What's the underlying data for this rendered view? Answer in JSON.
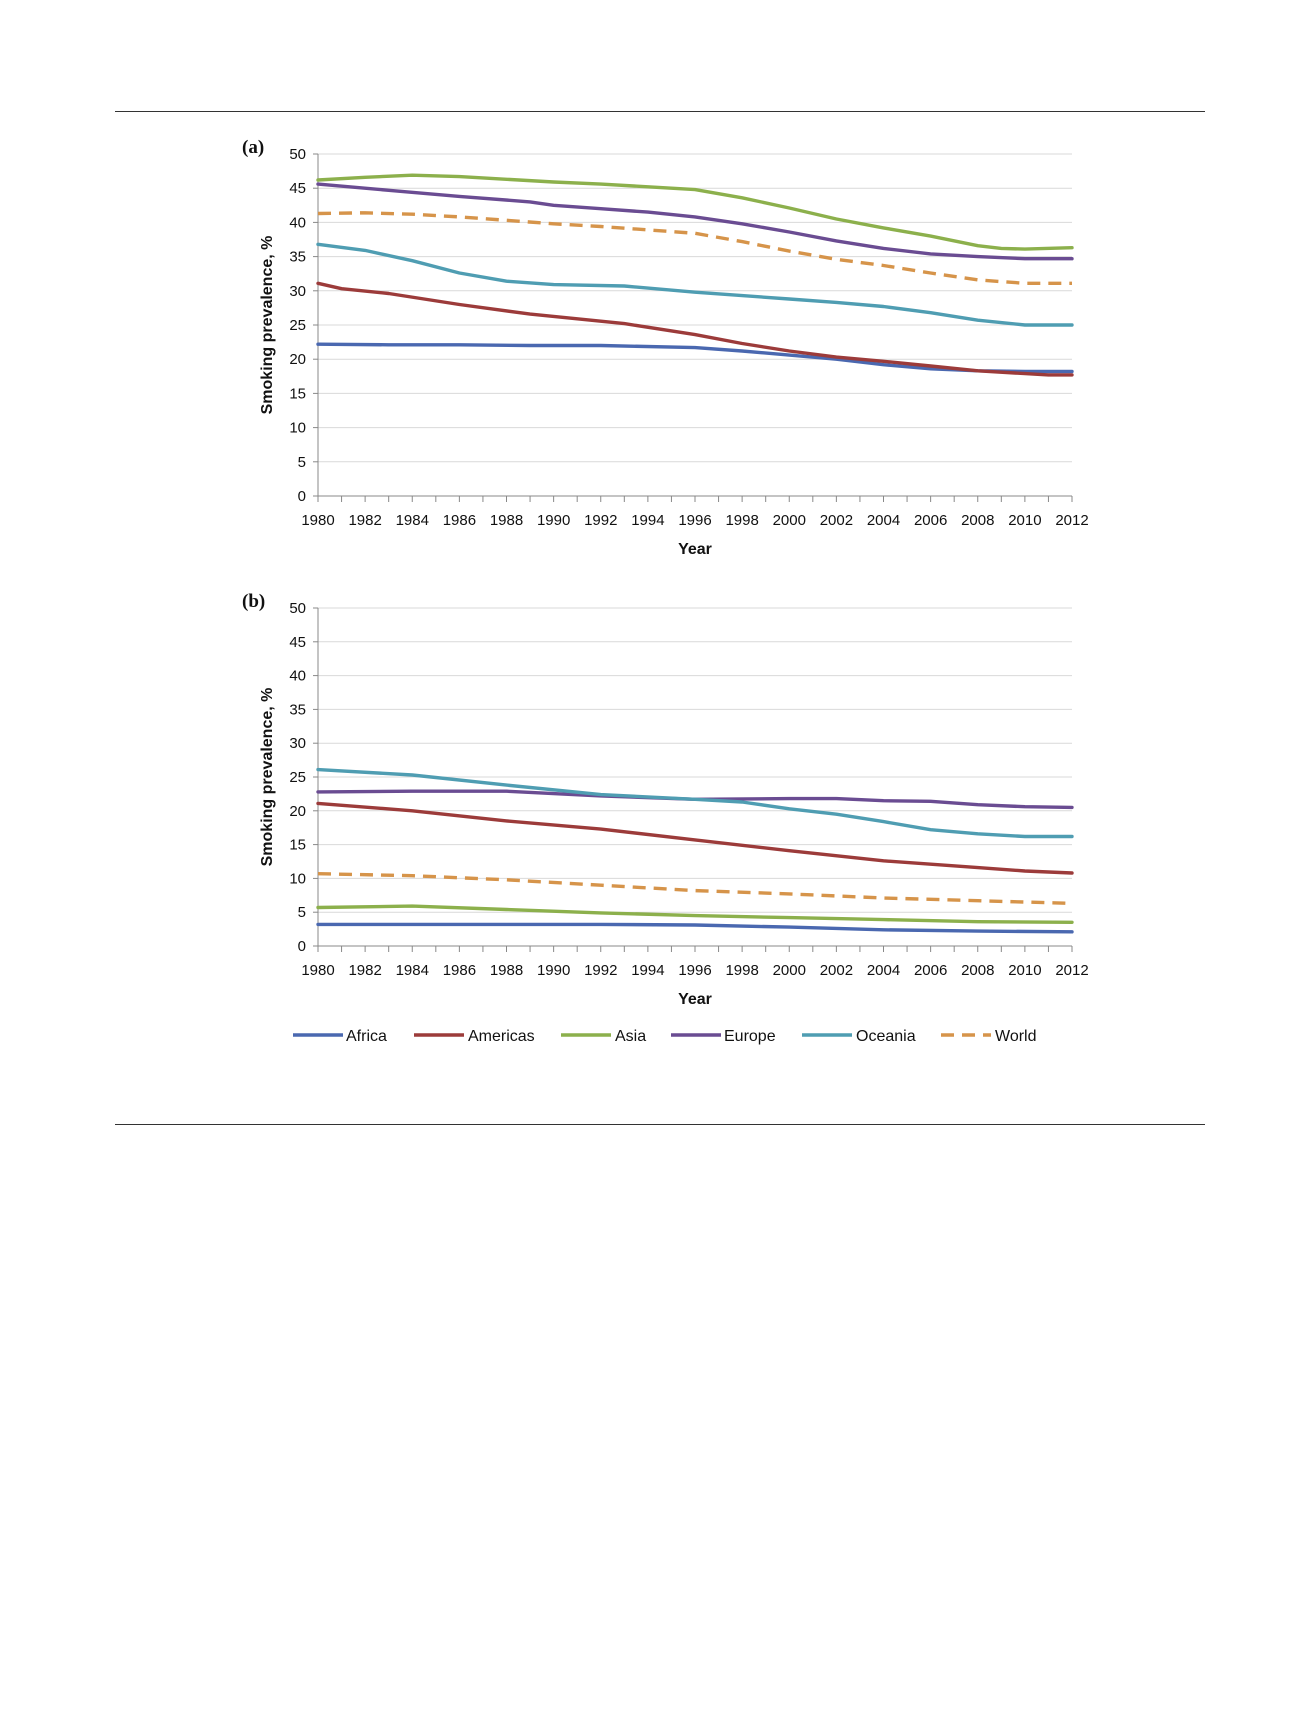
{
  "chart_data": [
    {
      "type": "line",
      "panel_label": "(a)",
      "xlabel": "Year",
      "ylabel": "Smoking prevalence, %",
      "ylim": [
        0,
        50
      ],
      "yticks": [
        0,
        5,
        10,
        15,
        20,
        25,
        30,
        35,
        40,
        45,
        50
      ],
      "xlim": [
        1980,
        2012
      ],
      "xticks": [
        1980,
        1982,
        1984,
        1986,
        1988,
        1990,
        1992,
        1994,
        1996,
        1998,
        2000,
        2002,
        2004,
        2006,
        2008,
        2010,
        2012
      ],
      "grid": true,
      "series": [
        {
          "name": "Africa",
          "x": [
            1980,
            1983,
            1986,
            1989,
            1992,
            1996,
            1998,
            2000,
            2002,
            2004,
            2006,
            2008,
            2010,
            2012
          ],
          "values": [
            22.2,
            22.1,
            22.1,
            22.0,
            22.0,
            21.7,
            21.2,
            20.6,
            20.0,
            19.2,
            18.6,
            18.3,
            18.2,
            18.2
          ]
        },
        {
          "name": "Americas",
          "x": [
            1980,
            1981,
            1983,
            1986,
            1989,
            1993,
            1996,
            1998,
            2000,
            2002,
            2004,
            2006,
            2008,
            2010,
            2011,
            2012
          ],
          "values": [
            31.1,
            30.3,
            29.6,
            28.0,
            26.6,
            25.2,
            23.6,
            22.3,
            21.2,
            20.3,
            19.7,
            19.0,
            18.3,
            17.9,
            17.7,
            17.7
          ]
        },
        {
          "name": "Asia",
          "x": [
            1980,
            1982,
            1984,
            1986,
            1988,
            1990,
            1992,
            1994,
            1996,
            1998,
            2000,
            2002,
            2004,
            2006,
            2008,
            2009,
            2010,
            2012
          ],
          "values": [
            46.2,
            46.6,
            46.9,
            46.7,
            46.3,
            45.9,
            45.6,
            45.2,
            44.8,
            43.6,
            42.1,
            40.5,
            39.2,
            38.0,
            36.6,
            36.2,
            36.1,
            36.3
          ]
        },
        {
          "name": "Europe",
          "x": [
            1980,
            1983,
            1986,
            1989,
            1990,
            1992,
            1994,
            1996,
            1998,
            2000,
            2002,
            2004,
            2006,
            2008,
            2010,
            2012
          ],
          "values": [
            45.6,
            44.7,
            43.8,
            43.0,
            42.5,
            42.0,
            41.5,
            40.8,
            39.8,
            38.6,
            37.3,
            36.2,
            35.4,
            35.0,
            34.7,
            34.7
          ]
        },
        {
          "name": "Oceania",
          "x": [
            1980,
            1982,
            1984,
            1986,
            1988,
            1990,
            1993,
            1996,
            1998,
            2000,
            2002,
            2004,
            2006,
            2008,
            2010,
            2012
          ],
          "values": [
            36.8,
            35.9,
            34.4,
            32.6,
            31.4,
            30.9,
            30.7,
            29.8,
            29.3,
            28.8,
            28.3,
            27.7,
            26.8,
            25.7,
            25.0,
            25.0
          ]
        },
        {
          "name": "World",
          "x": [
            1980,
            1982,
            1984,
            1986,
            1988,
            1990,
            1992,
            1994,
            1996,
            1998,
            2000,
            2002,
            2004,
            2006,
            2008,
            2010,
            2012
          ],
          "values": [
            41.3,
            41.4,
            41.2,
            40.8,
            40.3,
            39.8,
            39.4,
            38.9,
            38.4,
            37.2,
            35.8,
            34.6,
            33.7,
            32.6,
            31.6,
            31.1,
            31.1
          ]
        }
      ]
    },
    {
      "type": "line",
      "panel_label": "(b)",
      "xlabel": "Year",
      "ylabel": "Smoking prevalence, %",
      "ylim": [
        0,
        50
      ],
      "yticks": [
        0,
        5,
        10,
        15,
        20,
        25,
        30,
        35,
        40,
        45,
        50
      ],
      "xlim": [
        1980,
        2012
      ],
      "xticks": [
        1980,
        1982,
        1984,
        1986,
        1988,
        1990,
        1992,
        1994,
        1996,
        1998,
        2000,
        2002,
        2004,
        2006,
        2008,
        2010,
        2012
      ],
      "grid": true,
      "series": [
        {
          "name": "Africa",
          "x": [
            1980,
            1985,
            1990,
            1992,
            1996,
            2000,
            2004,
            2008,
            2012
          ],
          "values": [
            3.2,
            3.2,
            3.2,
            3.2,
            3.1,
            2.8,
            2.4,
            2.2,
            2.1
          ]
        },
        {
          "name": "Americas",
          "x": [
            1980,
            1984,
            1988,
            1992,
            1996,
            2000,
            2004,
            2008,
            2010,
            2012
          ],
          "values": [
            21.1,
            20.0,
            18.5,
            17.3,
            15.7,
            14.1,
            12.6,
            11.6,
            11.1,
            10.8
          ]
        },
        {
          "name": "Asia",
          "x": [
            1980,
            1984,
            1988,
            1992,
            1996,
            2000,
            2004,
            2008,
            2012
          ],
          "values": [
            5.7,
            5.9,
            5.4,
            4.9,
            4.5,
            4.2,
            3.9,
            3.6,
            3.5
          ]
        },
        {
          "name": "Europe",
          "x": [
            1980,
            1984,
            1988,
            1992,
            1996,
            2000,
            2002,
            2004,
            2006,
            2008,
            2010,
            2012
          ],
          "values": [
            22.8,
            22.9,
            22.9,
            22.2,
            21.7,
            21.8,
            21.8,
            21.5,
            21.4,
            20.9,
            20.6,
            20.5
          ]
        },
        {
          "name": "Oceania",
          "x": [
            1980,
            1984,
            1988,
            1992,
            1996,
            1998,
            2000,
            2002,
            2004,
            2006,
            2008,
            2010,
            2012
          ],
          "values": [
            26.1,
            25.3,
            23.8,
            22.4,
            21.7,
            21.3,
            20.3,
            19.5,
            18.4,
            17.2,
            16.6,
            16.2,
            16.2
          ]
        },
        {
          "name": "World",
          "x": [
            1980,
            1984,
            1988,
            1992,
            1996,
            2000,
            2004,
            2008,
            2012
          ],
          "values": [
            10.7,
            10.4,
            9.8,
            9.0,
            8.2,
            7.7,
            7.1,
            6.7,
            6.3
          ]
        }
      ]
    }
  ],
  "legend": {
    "items": [
      {
        "name": "Africa",
        "color": "#4a68b0",
        "dash": false
      },
      {
        "name": "Americas",
        "color": "#9c3b3a",
        "dash": false
      },
      {
        "name": "Asia",
        "color": "#8cb04c",
        "dash": false
      },
      {
        "name": "Europe",
        "color": "#6a4c92",
        "dash": false
      },
      {
        "name": "Oceania",
        "color": "#4f9db2",
        "dash": false
      },
      {
        "name": "World",
        "color": "#d6944a",
        "dash": true
      }
    ]
  },
  "colors": {
    "Africa": "#4a68b0",
    "Americas": "#9c3b3a",
    "Asia": "#8cb04c",
    "Europe": "#6a4c92",
    "Oceania": "#4f9db2",
    "World": "#d6944a",
    "grid": "#d9d9d9",
    "axis": "#888888"
  }
}
